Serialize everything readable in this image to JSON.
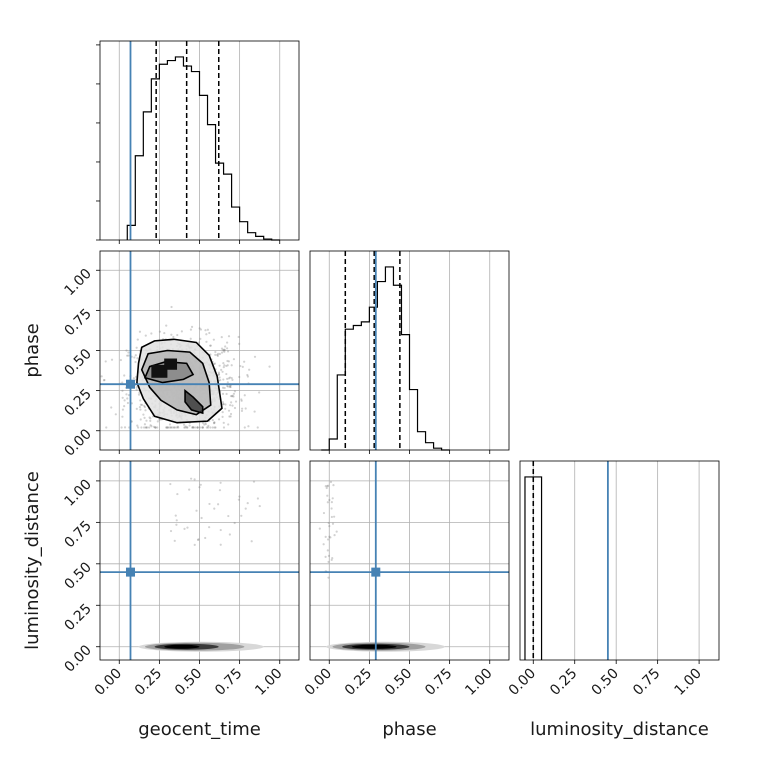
{
  "chart_data": {
    "type": "corner",
    "parameters": [
      "geocent_time",
      "phase",
      "luminosity_distance"
    ],
    "axis_labels": [
      "geocent_time",
      "phase",
      "luminosity_distance"
    ],
    "tick_labels": [
      "0.00",
      "0.25",
      "0.50",
      "0.75",
      "1.00"
    ],
    "ranges": {
      "geocent_time": [
        -0.12,
        1.12
      ],
      "phase": [
        -0.12,
        1.12
      ],
      "luminosity_distance": [
        -0.08,
        1.12
      ]
    },
    "grid": true,
    "colors": {
      "truth": "#4682b4",
      "hist": "#000000",
      "grid": "#b0b0b0",
      "points": "#7f7f7f"
    },
    "truths": {
      "geocent_time": 0.07,
      "phase": 0.29,
      "luminosity_distance": 0.45
    },
    "quantiles": {
      "geocent_time": [
        0.23,
        0.42,
        0.62
      ],
      "phase": [
        0.1,
        0.28,
        0.44
      ],
      "luminosity_distance": [
        0.0,
        0.0,
        0.0
      ]
    },
    "histograms": {
      "geocent_time": {
        "edges": [
          0.05,
          0.1,
          0.15,
          0.2,
          0.25,
          0.3,
          0.35,
          0.4,
          0.45,
          0.5,
          0.55,
          0.6,
          0.65,
          0.7,
          0.75,
          0.8,
          0.85,
          0.9,
          0.95,
          1.0
        ],
        "counts": [
          8,
          46,
          70,
          88,
          96,
          98,
          100,
          95,
          92,
          79,
          63,
          42,
          36,
          18,
          10,
          4,
          2,
          0.5,
          0
        ]
      },
      "phase": {
        "edges": [
          -0.05,
          0.0,
          0.05,
          0.1,
          0.15,
          0.2,
          0.25,
          0.3,
          0.35,
          0.4,
          0.45,
          0.5,
          0.55,
          0.6,
          0.65,
          0.7,
          0.75
        ],
        "counts": [
          0,
          6,
          41,
          66,
          68,
          70,
          78,
          92,
          100,
          90,
          63,
          33,
          10,
          4,
          1,
          0
        ]
      },
      "luminosity_distance": {
        "edges": [
          -0.05,
          0.0,
          0.05
        ],
        "counts": [
          100,
          100
        ]
      }
    },
    "contours_geocent_time_phase": [
      {
        "level": "outer",
        "points": [
          [
            0.12,
            0.42
          ],
          [
            0.14,
            0.52
          ],
          [
            0.22,
            0.56
          ],
          [
            0.34,
            0.57
          ],
          [
            0.48,
            0.55
          ],
          [
            0.56,
            0.47
          ],
          [
            0.61,
            0.34
          ],
          [
            0.64,
            0.14
          ],
          [
            0.55,
            0.06
          ],
          [
            0.36,
            0.05
          ],
          [
            0.22,
            0.09
          ],
          [
            0.15,
            0.2
          ],
          [
            0.11,
            0.3
          ]
        ]
      },
      {
        "level": "middle",
        "points": [
          [
            0.14,
            0.38
          ],
          [
            0.18,
            0.48
          ],
          [
            0.3,
            0.5
          ],
          [
            0.44,
            0.49
          ],
          [
            0.52,
            0.42
          ],
          [
            0.56,
            0.3
          ],
          [
            0.57,
            0.16
          ],
          [
            0.48,
            0.1
          ],
          [
            0.36,
            0.13
          ],
          [
            0.26,
            0.19
          ],
          [
            0.19,
            0.27
          ]
        ]
      },
      {
        "level": "inner",
        "points": [
          [
            0.16,
            0.33
          ],
          [
            0.19,
            0.4
          ],
          [
            0.29,
            0.43
          ],
          [
            0.42,
            0.42
          ],
          [
            0.46,
            0.35
          ],
          [
            0.4,
            0.32
          ],
          [
            0.27,
            0.3
          ]
        ]
      },
      {
        "level": "inner-lobe",
        "points": [
          [
            0.41,
            0.25
          ],
          [
            0.46,
            0.21
          ],
          [
            0.52,
            0.15
          ],
          [
            0.52,
            0.11
          ],
          [
            0.45,
            0.13
          ],
          [
            0.41,
            0.18
          ]
        ]
      }
    ],
    "density_center_geocent_time_phase": [
      0.3,
      0.35
    ],
    "density_center_geocent_time_luminosity_distance": [
      0.38,
      0.0
    ],
    "density_center_phase_luminosity_distance": [
      0.3,
      0.0
    ]
  }
}
